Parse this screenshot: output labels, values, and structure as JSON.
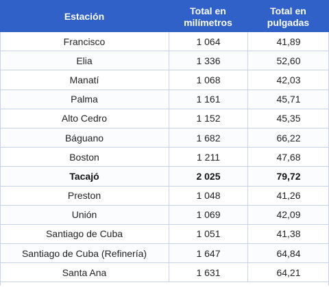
{
  "table": {
    "headers": {
      "station": "Estación",
      "mm": "Total en\nmilímetros",
      "inches": "Total en\npulgadas"
    },
    "rows": [
      {
        "station": "Francisco",
        "mm": "1 064",
        "inches": "41,89",
        "bold": false
      },
      {
        "station": "Elia",
        "mm": "1 336",
        "inches": "52,60",
        "bold": false
      },
      {
        "station": "Manatí",
        "mm": "1 068",
        "inches": "42,03",
        "bold": false
      },
      {
        "station": "Palma",
        "mm": "1 161",
        "inches": "45,71",
        "bold": false
      },
      {
        "station": "Alto Cedro",
        "mm": "1 152",
        "inches": "45,35",
        "bold": false
      },
      {
        "station": "Báguano",
        "mm": "1 682",
        "inches": "66,22",
        "bold": false
      },
      {
        "station": "Boston",
        "mm": "1 211",
        "inches": "47,68",
        "bold": false
      },
      {
        "station": "Tacajó",
        "mm": "2 025",
        "inches": "79,72",
        "bold": true
      },
      {
        "station": "Preston",
        "mm": "1 048",
        "inches": "41,26",
        "bold": false
      },
      {
        "station": "Unión",
        "mm": "1 069",
        "inches": "42,09",
        "bold": false
      },
      {
        "station": "Santiago de Cuba",
        "mm": "1 051",
        "inches": "41,38",
        "bold": false
      },
      {
        "station": "Santiago de Cuba (Refinería)",
        "mm": "1 647",
        "inches": "64,84",
        "bold": false
      },
      {
        "station": "Santa Ana",
        "mm": "1 631",
        "inches": "64,21",
        "bold": false
      }
    ]
  },
  "colors": {
    "header_bg": "#2f61c9",
    "header_text": "#ffffff",
    "grid_line": "#c8d3e8"
  }
}
